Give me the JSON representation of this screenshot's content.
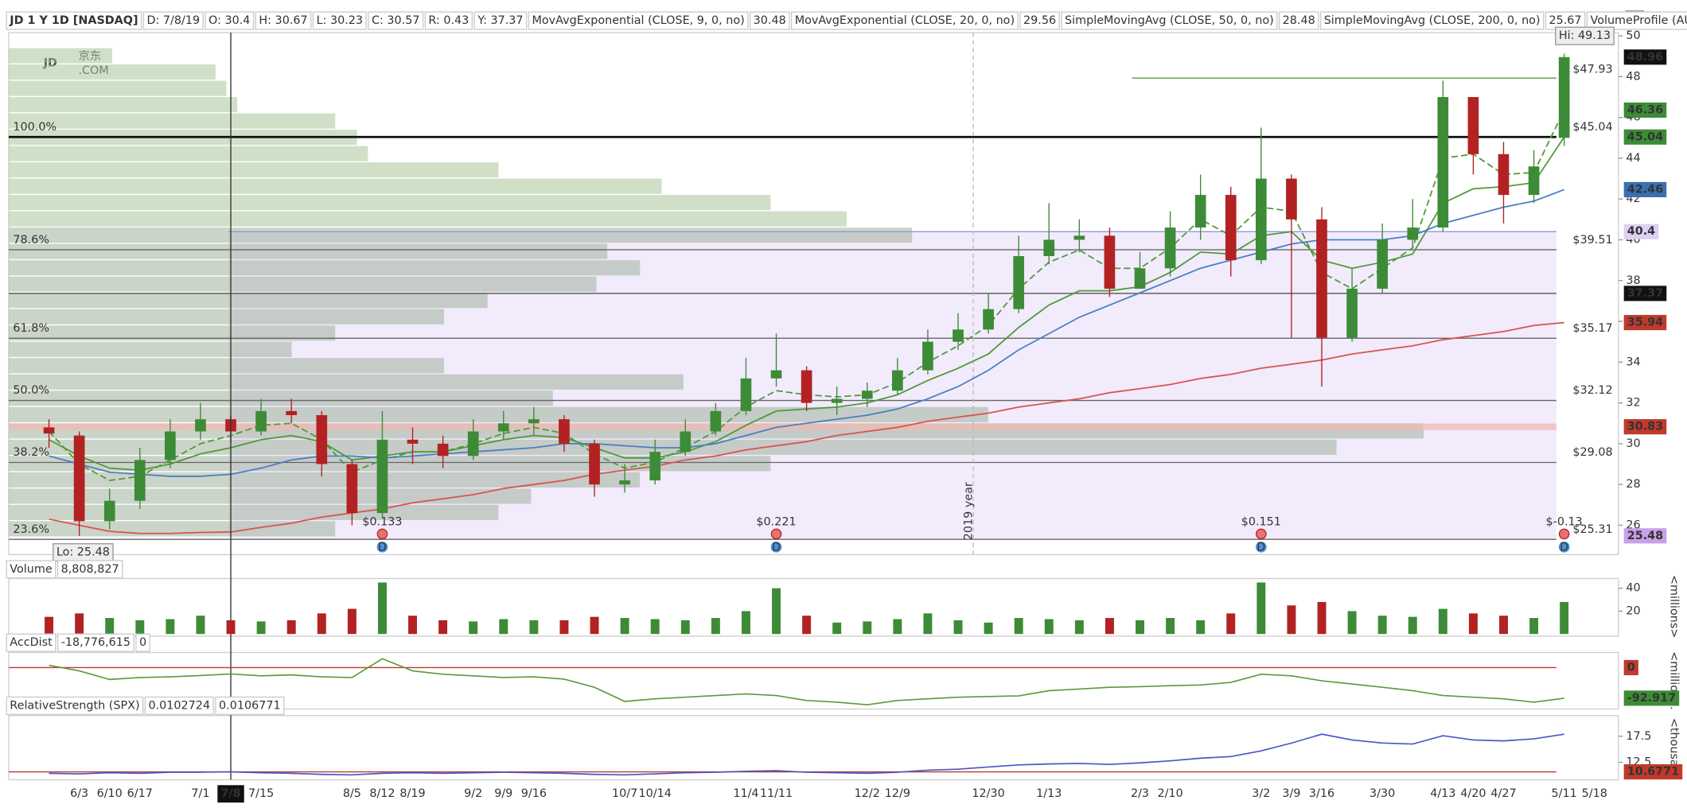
{
  "chart_data": [
    {
      "type": "candlestick",
      "title": "JD 1 Y 1D [NASDAQ]",
      "readout": [
        "D: 7/8/19",
        "O: 30.4",
        "H: 30.67",
        "L: 30.23",
        "C: 30.57",
        "R: 0.43",
        "Y: 37.37"
      ],
      "extra_legend": "VolumeProfile (AUTOMATIC, 1.0,...",
      "logo": [
        "JD",
        "京东",
        ".COM"
      ],
      "year_label": "2019 year",
      "categories": [
        null,
        "6/3",
        "6/10",
        "6/17",
        null,
        "7/1",
        "7/8",
        "7/15",
        null,
        null,
        "8/5",
        "8/12",
        "8/19",
        null,
        "9/2",
        "9/9",
        "9/16",
        null,
        null,
        "10/7",
        "10/14",
        null,
        null,
        "11/4",
        "11/11",
        null,
        null,
        "12/2",
        "12/9",
        null,
        null,
        "12/30",
        null,
        "1/13",
        null,
        null,
        "2/3",
        "2/10",
        null,
        null,
        "3/2",
        "3/9",
        "3/16",
        null,
        "3/30",
        null,
        "4/13",
        "4/20",
        "4/27",
        null,
        "5/11",
        "5/18"
      ],
      "crosshair_category": "7/8",
      "crosshair_y": 37.37,
      "up_color": "#3d8b37",
      "down_color": "#b22222",
      "open": [
        30.8,
        30.4,
        26.2,
        27.2,
        29.2,
        30.6,
        31.2,
        30.6,
        31.6,
        31.4,
        29.0,
        26.6,
        30.2,
        30.0,
        29.4,
        30.6,
        31.0,
        31.2,
        30.0,
        28.0,
        28.2,
        29.6,
        30.6,
        31.6,
        33.2,
        33.6,
        32.0,
        32.2,
        32.6,
        33.6,
        35.0,
        35.6,
        36.6,
        39.2,
        40.0,
        40.2,
        37.6,
        38.6,
        40.6,
        42.2,
        39.0,
        43.0,
        41.0,
        35.2,
        37.6,
        40.0,
        40.6,
        47.0,
        44.2,
        42.2,
        45.0,
        null
      ],
      "high": [
        31.2,
        30.6,
        27.8,
        29.8,
        31.2,
        32.0,
        31.4,
        32.2,
        32.2,
        31.6,
        29.2,
        31.6,
        30.8,
        30.4,
        31.2,
        31.6,
        31.8,
        31.4,
        30.2,
        29.0,
        30.2,
        31.2,
        32.0,
        34.2,
        35.4,
        33.8,
        32.8,
        33.0,
        34.2,
        35.6,
        36.4,
        37.4,
        40.2,
        41.8,
        41.0,
        40.6,
        39.4,
        41.4,
        43.2,
        42.6,
        45.5,
        43.2,
        41.6,
        38.6,
        40.8,
        42.0,
        47.8,
        46.8,
        44.8,
        44.4,
        49.13,
        null
      ],
      "low": [
        29.8,
        25.48,
        25.8,
        26.8,
        28.8,
        30.2,
        30.0,
        30.4,
        31.0,
        28.4,
        26.0,
        26.4,
        29.0,
        28.8,
        29.2,
        30.2,
        30.4,
        29.6,
        27.4,
        27.6,
        28.0,
        29.4,
        30.4,
        31.4,
        32.8,
        31.6,
        31.4,
        31.8,
        32.4,
        33.4,
        34.6,
        35.4,
        36.4,
        38.8,
        39.4,
        37.2,
        37.6,
        38.2,
        40.0,
        38.2,
        38.8,
        35.2,
        32.8,
        35.0,
        37.4,
        39.6,
        40.4,
        43.2,
        40.8,
        41.8,
        44.6,
        null
      ],
      "close": [
        30.5,
        26.2,
        27.2,
        29.2,
        30.6,
        31.2,
        30.6,
        31.6,
        31.4,
        29.0,
        26.6,
        30.2,
        30.0,
        29.4,
        30.6,
        31.0,
        31.2,
        30.0,
        28.0,
        28.2,
        29.6,
        30.6,
        31.6,
        33.2,
        33.6,
        32.0,
        32.2,
        32.6,
        33.6,
        35.0,
        35.6,
        36.6,
        39.2,
        40.0,
        40.2,
        37.6,
        38.6,
        40.6,
        42.2,
        39.0,
        43.0,
        41.0,
        35.2,
        37.6,
        40.0,
        40.6,
        47.0,
        44.2,
        42.2,
        43.6,
        48.96,
        null
      ],
      "high_label": "Hi: 49.13",
      "low_label": "Lo: 25.48",
      "series": [
        {
          "name": "MovAvgExponential (CLOSE, 9, 0, no)",
          "legend_value": "30.48",
          "color": "#4f9a3a",
          "style": "dashed",
          "values": [
            30.6,
            29.0,
            28.2,
            28.4,
            29.2,
            30.0,
            30.4,
            30.9,
            31.0,
            30.2,
            28.6,
            29.2,
            29.6,
            29.6,
            30.0,
            30.5,
            30.8,
            30.5,
            29.5,
            28.8,
            29.1,
            29.8,
            30.6,
            31.8,
            32.6,
            32.4,
            32.3,
            32.4,
            33.0,
            34.0,
            34.8,
            35.8,
            37.6,
            38.9,
            39.5,
            38.6,
            38.6,
            39.6,
            41.0,
            40.2,
            41.6,
            41.4,
            38.4,
            37.6,
            38.6,
            39.6,
            44.0,
            44.2,
            43.2,
            43.3,
            46.36,
            null
          ]
        },
        {
          "name": "MovAvgExponential (CLOSE, 20, 0, no)",
          "legend_value": "29.56",
          "color": "#4f9a3a",
          "style": "solid",
          "values": [
            30.2,
            29.4,
            28.8,
            28.7,
            29.0,
            29.5,
            29.8,
            30.2,
            30.4,
            30.1,
            29.2,
            29.4,
            29.6,
            29.6,
            29.9,
            30.2,
            30.4,
            30.3,
            29.8,
            29.3,
            29.3,
            29.6,
            30.1,
            30.9,
            31.6,
            31.7,
            31.8,
            32.0,
            32.4,
            33.1,
            33.7,
            34.4,
            35.7,
            36.8,
            37.5,
            37.5,
            37.7,
            38.4,
            39.4,
            39.3,
            40.2,
            40.4,
            39.0,
            38.6,
            38.9,
            39.3,
            41.8,
            42.5,
            42.6,
            42.8,
            45.04,
            null
          ]
        },
        {
          "name": "SimpleMovingAvg (CLOSE, 50, 0, no)",
          "legend_value": "28.48",
          "color": "#4a7fc1",
          "style": "solid",
          "values": [
            29.4,
            29.0,
            28.6,
            28.5,
            28.4,
            28.4,
            28.5,
            28.8,
            29.2,
            29.4,
            29.4,
            29.3,
            29.4,
            29.5,
            29.6,
            29.7,
            29.8,
            30.0,
            30.0,
            29.9,
            29.8,
            29.8,
            30.0,
            30.4,
            30.8,
            31.0,
            31.2,
            31.4,
            31.7,
            32.2,
            32.8,
            33.6,
            34.6,
            35.4,
            36.2,
            36.8,
            37.4,
            38.0,
            38.6,
            39.0,
            39.4,
            39.8,
            40.0,
            40.0,
            40.0,
            40.2,
            40.8,
            41.2,
            41.6,
            41.9,
            42.46,
            null
          ]
        },
        {
          "name": "SimpleMovingAvg (CLOSE, 200, 0, no)",
          "legend_value": "25.67",
          "color": "#d9534f",
          "style": "solid",
          "values": [
            26.3,
            26.0,
            25.7,
            25.6,
            25.6,
            25.65,
            25.67,
            25.9,
            26.1,
            26.4,
            26.6,
            26.8,
            27.1,
            27.3,
            27.5,
            27.8,
            28.0,
            28.2,
            28.5,
            28.7,
            28.9,
            29.2,
            29.4,
            29.7,
            29.9,
            30.1,
            30.4,
            30.6,
            30.8,
            31.1,
            31.3,
            31.5,
            31.8,
            32.0,
            32.2,
            32.5,
            32.7,
            32.9,
            33.2,
            33.4,
            33.7,
            33.9,
            34.1,
            34.4,
            34.6,
            34.8,
            35.1,
            35.3,
            35.5,
            35.8,
            35.94,
            null
          ]
        }
      ],
      "fib": {
        "labels": [
          "100.0%",
          "78.6%",
          "61.8%",
          "50.0%",
          "38.2%",
          "23.6%"
        ],
        "values": [
          45.04,
          39.51,
          35.17,
          32.12,
          29.08,
          25.31
        ],
        "value_labels": [
          "$45.04",
          "$39.51",
          "$35.17",
          "$32.12",
          "$29.08",
          "$25.31"
        ]
      },
      "resistance": {
        "value": 47.93,
        "label": "$47.93"
      },
      "markers": {
        "values": [
          48.96,
          46.36,
          45.04,
          42.46,
          40.4,
          37.37,
          35.94,
          30.83,
          25.48
        ],
        "colors": [
          "#111111",
          "#3d8b37",
          "#3d8b37",
          "#3a6fb0",
          "#ddd0f2",
          "#111111",
          "#c0392b",
          "#c0392b",
          "#c9a0e8"
        ]
      },
      "dividend_labels": [
        null,
        null,
        null,
        null,
        null,
        null,
        null,
        null,
        null,
        null,
        null,
        "$0.133",
        null,
        null,
        null,
        null,
        null,
        null,
        null,
        null,
        null,
        null,
        null,
        null,
        "$0.221",
        null,
        null,
        null,
        null,
        null,
        null,
        null,
        null,
        null,
        null,
        null,
        null,
        null,
        null,
        null,
        "$0.151",
        null,
        null,
        null,
        null,
        null,
        null,
        null,
        null,
        null,
        "$-0.13",
        null
      ],
      "dividend_icon": "D",
      "profile": {
        "prices": [
          49,
          48.2,
          47.4,
          46.6,
          45.8,
          45.0,
          44.2,
          43.4,
          42.6,
          41.8,
          41.0,
          40.2,
          39.4,
          38.6,
          37.8,
          37.0,
          36.2,
          35.4,
          34.6,
          33.8,
          33.0,
          32.2,
          31.4,
          30.6,
          29.8,
          29.0,
          28.2,
          27.4,
          26.6,
          25.8
        ],
        "values": [
          95,
          190,
          200,
          210,
          300,
          320,
          330,
          450,
          600,
          700,
          770,
          830,
          550,
          580,
          540,
          440,
          400,
          300,
          260,
          400,
          620,
          500,
          900,
          1300,
          1220,
          700,
          580,
          480,
          450,
          300
        ]
      },
      "ylim": [
        24.56,
        50.16
      ],
      "yticks": [
        26,
        28,
        30,
        32,
        34,
        36,
        38,
        40,
        42,
        44,
        46,
        48,
        50
      ]
    },
    {
      "type": "bar",
      "title": "Volume",
      "readout": [
        "8,808,827"
      ],
      "unit_label": "<millions>",
      "values": [
        15,
        18,
        14,
        12,
        13,
        16,
        12,
        11,
        12,
        18,
        22,
        45,
        16,
        12,
        11,
        13,
        12,
        12,
        15,
        14,
        13,
        12,
        14,
        20,
        40,
        16,
        10,
        11,
        13,
        18,
        12,
        10,
        14,
        13,
        12,
        14,
        12,
        14,
        12,
        18,
        45,
        25,
        28,
        20,
        16,
        15,
        22,
        18,
        16,
        14,
        28,
        null
      ],
      "ylim": [
        0,
        48
      ],
      "yticks": [
        20,
        40
      ]
    },
    {
      "type": "line",
      "title": "AccDist",
      "readout": [
        "-18,776,615",
        "0"
      ],
      "unit_label": "<million...",
      "color": "#5c9a3a",
      "reference": 0,
      "values": [
        7,
        -10,
        -36,
        -30,
        -28,
        -24,
        -19,
        -25,
        -22,
        -28,
        -30,
        27,
        -10,
        -20,
        -25,
        -30,
        -28,
        -35,
        -60,
        -103,
        -95,
        -90,
        -85,
        -80,
        -85,
        -100,
        -105,
        -113,
        -100,
        -95,
        -90,
        -88,
        -86,
        -70,
        -65,
        -60,
        -58,
        -55,
        -53,
        -45,
        -20,
        -25,
        -40,
        -50,
        -60,
        -70,
        -85,
        -90,
        -95,
        -105,
        -92.917,
        null
      ],
      "ylim": [
        -126,
        46
      ]
    },
    {
      "type": "line",
      "title": "RelativeStrength (SPX)",
      "readout": [
        "0.0102724",
        "0.0106771"
      ],
      "unit_label": "<thousa...",
      "color": "#4a55c8",
      "reference": 10.6771,
      "values": [
        10.4,
        10.3,
        10.5,
        10.4,
        10.6,
        10.6,
        10.68,
        10.5,
        10.4,
        10.2,
        10.1,
        10.4,
        10.5,
        10.4,
        10.5,
        10.6,
        10.5,
        10.4,
        10.2,
        10.1,
        10.3,
        10.5,
        10.6,
        10.8,
        10.9,
        10.6,
        10.5,
        10.4,
        10.6,
        11.0,
        11.2,
        11.6,
        12.0,
        12.2,
        12.3,
        12.1,
        12.4,
        12.8,
        13.3,
        13.6,
        14.7,
        16.2,
        17.9,
        16.8,
        16.2,
        16.0,
        17.6,
        16.8,
        16.6,
        17.0,
        17.9,
        null
      ],
      "ylim": [
        9.17,
        21.46
      ],
      "yticks": [
        12.5,
        17.5
      ]
    }
  ]
}
